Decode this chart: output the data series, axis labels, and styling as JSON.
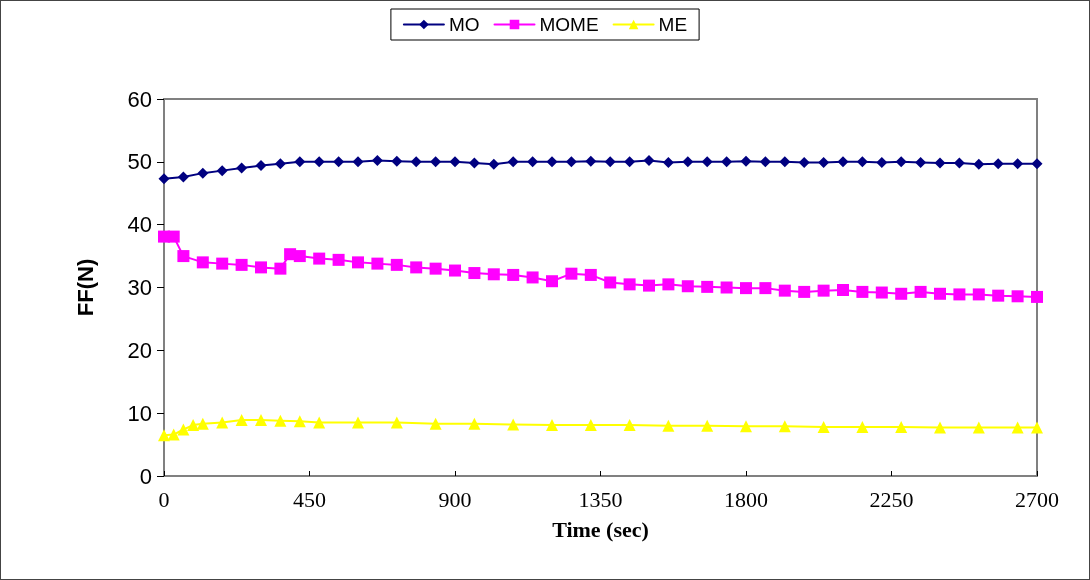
{
  "chart_data": {
    "type": "line",
    "xlabel": "Time (sec)",
    "ylabel": "FF(N)",
    "xlim": [
      0,
      2700
    ],
    "xticks": [
      0,
      450,
      900,
      1350,
      1800,
      2250,
      2700
    ],
    "ylim": [
      0,
      60
    ],
    "yticks": [
      0,
      10,
      20,
      30,
      40,
      50,
      60
    ],
    "grid": false,
    "legend": "top",
    "series": [
      {
        "name": "MO",
        "color": "#000080",
        "marker": "diamond",
        "x": [
          0,
          60,
          120,
          180,
          240,
          300,
          360,
          420,
          480,
          540,
          600,
          660,
          720,
          780,
          840,
          900,
          960,
          1020,
          1080,
          1140,
          1200,
          1260,
          1320,
          1380,
          1440,
          1500,
          1560,
          1620,
          1680,
          1740,
          1800,
          1860,
          1920,
          1980,
          2040,
          2100,
          2160,
          2220,
          2280,
          2340,
          2400,
          2460,
          2520,
          2580,
          2640,
          2700
        ],
        "values": [
          47.3,
          47.6,
          48.2,
          48.6,
          49.0,
          49.4,
          49.7,
          50.0,
          50.0,
          50.0,
          50.0,
          50.2,
          50.1,
          50.0,
          50.0,
          50.0,
          49.8,
          49.6,
          50.0,
          50.0,
          50.0,
          50.0,
          50.1,
          50.0,
          50.0,
          50.2,
          49.9,
          50.0,
          50.0,
          50.0,
          50.1,
          50.0,
          50.0,
          49.9,
          49.9,
          50.0,
          50.0,
          49.9,
          50.0,
          49.9,
          49.8,
          49.8,
          49.6,
          49.7,
          49.7,
          49.7
        ]
      },
      {
        "name": "MOME",
        "color": "#ff00ff",
        "marker": "square",
        "x": [
          0,
          30,
          60,
          120,
          180,
          240,
          300,
          360,
          390,
          420,
          480,
          540,
          600,
          660,
          720,
          780,
          840,
          900,
          960,
          1020,
          1080,
          1140,
          1200,
          1260,
          1320,
          1380,
          1440,
          1500,
          1560,
          1620,
          1680,
          1740,
          1800,
          1860,
          1920,
          1980,
          2040,
          2100,
          2160,
          2220,
          2280,
          2340,
          2400,
          2460,
          2520,
          2580,
          2640,
          2700
        ],
        "values": [
          38.1,
          38.1,
          35.0,
          34.0,
          33.8,
          33.6,
          33.2,
          33.0,
          35.3,
          35.0,
          34.6,
          34.4,
          34.0,
          33.8,
          33.6,
          33.2,
          33.0,
          32.7,
          32.3,
          32.1,
          32.0,
          31.6,
          31.0,
          32.2,
          32.0,
          30.8,
          30.5,
          30.3,
          30.5,
          30.2,
          30.1,
          30.0,
          29.9,
          29.9,
          29.5,
          29.3,
          29.5,
          29.6,
          29.3,
          29.2,
          29.0,
          29.3,
          29.0,
          28.9,
          28.9,
          28.7,
          28.6,
          28.5
        ]
      },
      {
        "name": "ME",
        "color": "#ffff00",
        "marker": "triangle",
        "x": [
          0,
          30,
          60,
          90,
          120,
          180,
          240,
          300,
          360,
          420,
          480,
          600,
          720,
          840,
          960,
          1080,
          1200,
          1320,
          1440,
          1560,
          1680,
          1800,
          1920,
          2040,
          2160,
          2280,
          2400,
          2520,
          2640,
          2700
        ],
        "values": [
          6.5,
          6.6,
          7.4,
          8.1,
          8.3,
          8.5,
          8.9,
          8.9,
          8.8,
          8.7,
          8.5,
          8.5,
          8.5,
          8.3,
          8.3,
          8.2,
          8.1,
          8.1,
          8.1,
          8.0,
          8.0,
          7.9,
          7.9,
          7.8,
          7.8,
          7.8,
          7.7,
          7.7,
          7.7,
          7.7
        ]
      }
    ]
  }
}
